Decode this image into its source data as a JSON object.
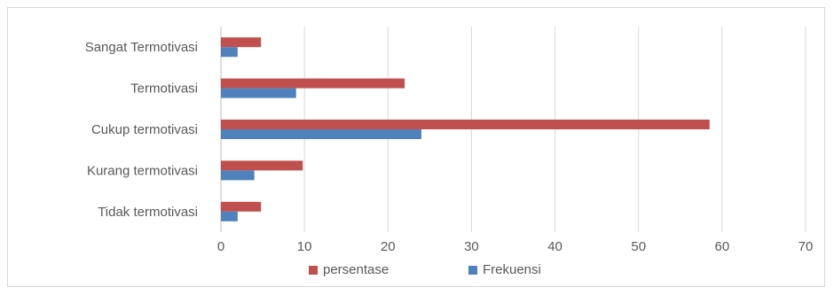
{
  "chart_data": {
    "type": "bar",
    "orientation": "horizontal",
    "title": "",
    "xlabel": "",
    "ylabel": "",
    "categories": [
      "Sangat Termotivasi",
      "Termotivasi",
      "Cukup termotivasi",
      "Kurang termotivasi",
      "Tidak termotivasi"
    ],
    "series": [
      {
        "name": "persentase",
        "color": "#c0504d",
        "values": [
          4.8,
          22,
          58.5,
          9.8,
          4.8
        ]
      },
      {
        "name": "Frekuensi",
        "color": "#4f81bd",
        "values": [
          2,
          9,
          24,
          4,
          2
        ]
      }
    ],
    "xlim": [
      0,
      70
    ],
    "ticks": [
      "0",
      "10",
      "20",
      "30",
      "40",
      "50",
      "60",
      "70"
    ],
    "grid": "vertical",
    "legend_position": "bottom"
  }
}
